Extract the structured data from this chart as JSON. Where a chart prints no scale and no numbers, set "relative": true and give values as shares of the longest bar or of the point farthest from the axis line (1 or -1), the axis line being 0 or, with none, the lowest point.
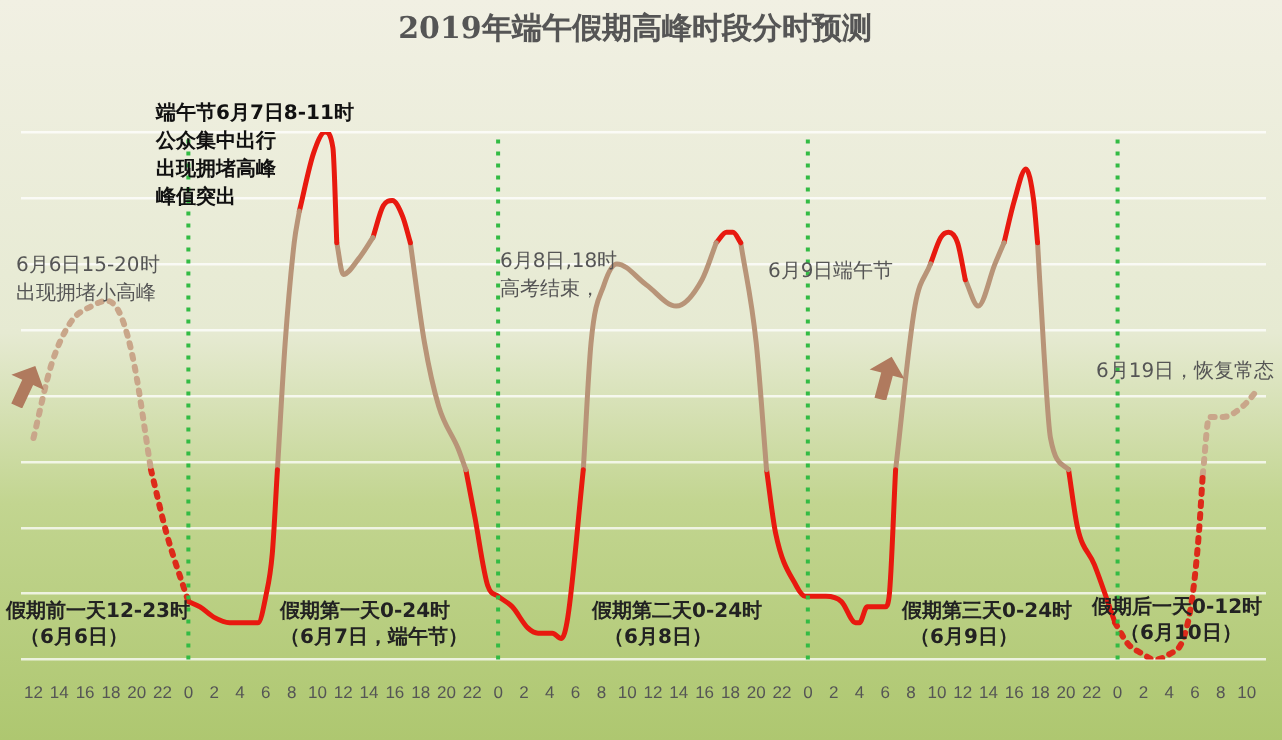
{
  "chart_data": {
    "type": "line",
    "title": "2019年端午假期高峰时段分时预测",
    "relative": true,
    "legend": false,
    "grid": "y",
    "marker": "none",
    "xlim": [
      "2019-06-06T11:00",
      "2019-06-10T11:30"
    ],
    "xticks": [
      {
        "value": "2019-06-06T12:00",
        "label": "12"
      },
      {
        "value": "2019-06-06T14:00",
        "label": "14"
      },
      {
        "value": "2019-06-06T16:00",
        "label": "16"
      },
      {
        "value": "2019-06-06T18:00",
        "label": "18"
      },
      {
        "value": "2019-06-06T20:00",
        "label": "20"
      },
      {
        "value": "2019-06-06T22:00",
        "label": "22"
      },
      {
        "value": "2019-06-07T00:00",
        "label": "0"
      },
      {
        "value": "2019-06-07T02:00",
        "label": "2"
      },
      {
        "value": "2019-06-07T04:00",
        "label": "4"
      },
      {
        "value": "2019-06-07T06:00",
        "label": "6"
      },
      {
        "value": "2019-06-07T08:00",
        "label": "8"
      },
      {
        "value": "2019-06-07T10:00",
        "label": "10"
      },
      {
        "value": "2019-06-07T12:00",
        "label": "12"
      },
      {
        "value": "2019-06-07T14:00",
        "label": "14"
      },
      {
        "value": "2019-06-07T16:00",
        "label": "16"
      },
      {
        "value": "2019-06-07T18:00",
        "label": "18"
      },
      {
        "value": "2019-06-07T20:00",
        "label": "20"
      },
      {
        "value": "2019-06-07T22:00",
        "label": "22"
      },
      {
        "value": "2019-06-08T00:00",
        "label": "0"
      },
      {
        "value": "2019-06-08T02:00",
        "label": "2"
      },
      {
        "value": "2019-06-08T04:00",
        "label": "4"
      },
      {
        "value": "2019-06-08T06:00",
        "label": "6"
      },
      {
        "value": "2019-06-08T08:00",
        "label": "8"
      },
      {
        "value": "2019-06-08T10:00",
        "label": "10"
      },
      {
        "value": "2019-06-08T12:00",
        "label": "12"
      },
      {
        "value": "2019-06-08T14:00",
        "label": "14"
      },
      {
        "value": "2019-06-08T16:00",
        "label": "16"
      },
      {
        "value": "2019-06-08T18:00",
        "label": "18"
      },
      {
        "value": "2019-06-08T20:00",
        "label": "20"
      },
      {
        "value": "2019-06-08T22:00",
        "label": "22"
      },
      {
        "value": "2019-06-09T00:00",
        "label": "0"
      },
      {
        "value": "2019-06-09T02:00",
        "label": "2"
      },
      {
        "value": "2019-06-09T04:00",
        "label": "4"
      },
      {
        "value": "2019-06-09T06:00",
        "label": "6"
      },
      {
        "value": "2019-06-09T08:00",
        "label": "8"
      },
      {
        "value": "2019-06-09T10:00",
        "label": "10"
      },
      {
        "value": "2019-06-09T12:00",
        "label": "12"
      },
      {
        "value": "2019-06-09T14:00",
        "label": "14"
      },
      {
        "value": "2019-06-09T16:00",
        "label": "16"
      },
      {
        "value": "2019-06-09T18:00",
        "label": "18"
      },
      {
        "value": "2019-06-09T20:00",
        "label": "20"
      },
      {
        "value": "2019-06-09T22:00",
        "label": "22"
      },
      {
        "value": "2019-06-10T00:00",
        "label": "0"
      },
      {
        "value": "2019-06-10T02:00",
        "label": "2"
      },
      {
        "value": "2019-06-10T04:00",
        "label": "4"
      },
      {
        "value": "2019-06-10T06:00",
        "label": "6"
      },
      {
        "value": "2019-06-10T08:00",
        "label": "8"
      },
      {
        "value": "2019-06-10T10:00",
        "label": "10"
      }
    ],
    "series": [
      {
        "color": "#c9a68a",
        "line_style": "dotted",
        "x": [
          "2019-06-06T12:00",
          "2019-06-06T13:24",
          "2019-06-06T14:54",
          "2019-06-06T16:30",
          "2019-06-06T17:42",
          "2019-06-06T18:48",
          "2019-06-06T19:48",
          "2019-06-06T21:06"
        ],
        "values": [
          0.42,
          0.56,
          0.64,
          0.67,
          0.68,
          0.65,
          0.56,
          0.36
        ]
      },
      {
        "color": "#dd2a1a",
        "line_style": "dotted",
        "x": [
          "2019-06-06T21:06",
          "2019-06-06T22:18",
          "2019-06-07T00:00"
        ],
        "values": [
          0.36,
          0.24,
          0.11
        ]
      },
      {
        "color": "#e8190f",
        "line_style": "solid",
        "x": [
          "2019-06-07T00:00",
          "2019-06-07T00:54",
          "2019-06-07T02:00",
          "2019-06-07T03:12",
          "2019-06-07T04:48",
          "2019-06-07T05:24",
          "2019-06-07T06:00",
          "2019-06-07T06:30",
          "2019-06-07T06:54"
        ],
        "values": [
          0.11,
          0.1,
          0.08,
          0.07,
          0.07,
          0.07,
          0.12,
          0.2,
          0.36
        ]
      },
      {
        "color": "#b89478",
        "line_style": "solid",
        "x": [
          "2019-06-07T06:54",
          "2019-06-07T07:30",
          "2019-06-07T08:12",
          "2019-06-07T08:36"
        ],
        "values": [
          0.36,
          0.6,
          0.79,
          0.85
        ]
      },
      {
        "color": "#e8190f",
        "line_style": "solid",
        "x": [
          "2019-06-07T08:36",
          "2019-06-07T09:42",
          "2019-06-07T10:36",
          "2019-06-07T11:12",
          "2019-06-07T11:30"
        ],
        "values": [
          0.85,
          0.96,
          1,
          0.97,
          0.79
        ]
      },
      {
        "color": "#b89478",
        "line_style": "solid",
        "x": [
          "2019-06-07T11:30",
          "2019-06-07T12:00",
          "2019-06-07T13:12",
          "2019-06-07T14:18"
        ],
        "values": [
          0.79,
          0.73,
          0.76,
          0.8
        ]
      },
      {
        "color": "#e8190f",
        "line_style": "solid",
        "x": [
          "2019-06-07T14:18",
          "2019-06-07T15:06",
          "2019-06-07T15:48",
          "2019-06-07T16:36",
          "2019-06-07T17:12"
        ],
        "values": [
          0.8,
          0.86,
          0.87,
          0.84,
          0.79
        ]
      },
      {
        "color": "#b89478",
        "line_style": "solid",
        "x": [
          "2019-06-07T17:12",
          "2019-06-07T18:18",
          "2019-06-07T19:24",
          "2019-06-07T20:54",
          "2019-06-07T21:30"
        ],
        "values": [
          0.79,
          0.6,
          0.48,
          0.4,
          0.36
        ]
      },
      {
        "color": "#e8190f",
        "line_style": "solid",
        "x": [
          "2019-06-07T21:30",
          "2019-06-07T22:12",
          "2019-06-07T23:12",
          "2019-06-08T00:00",
          "2019-06-08T01:06",
          "2019-06-08T02:18",
          "2019-06-08T03:06",
          "2019-06-08T04:12",
          "2019-06-08T04:54",
          "2019-06-08T05:24",
          "2019-06-08T06:36"
        ],
        "values": [
          0.36,
          0.27,
          0.14,
          0.12,
          0.1,
          0.06,
          0.05,
          0.05,
          0.04,
          0.08,
          0.36
        ]
      },
      {
        "color": "#b89478",
        "line_style": "solid",
        "x": [
          "2019-06-08T06:36",
          "2019-06-08T07:12",
          "2019-06-08T08:12",
          "2019-06-08T09:12",
          "2019-06-08T11:30",
          "2019-06-08T13:48",
          "2019-06-08T15:48",
          "2019-06-08T16:54"
        ],
        "values": [
          0.36,
          0.6,
          0.71,
          0.75,
          0.71,
          0.67,
          0.72,
          0.79
        ]
      },
      {
        "color": "#e8190f",
        "line_style": "solid",
        "x": [
          "2019-06-08T16:54",
          "2019-06-08T17:42",
          "2019-06-08T18:12",
          "2019-06-08T18:48"
        ],
        "values": [
          0.79,
          0.81,
          0.81,
          0.79
        ]
      },
      {
        "color": "#b89478",
        "line_style": "solid",
        "x": [
          "2019-06-08T18:48",
          "2019-06-08T20:00",
          "2019-06-08T20:48"
        ],
        "values": [
          0.79,
          0.6,
          0.36
        ]
      },
      {
        "color": "#e8190f",
        "line_style": "solid",
        "x": [
          "2019-06-08T20:48",
          "2019-06-08T21:30",
          "2019-06-08T23:06",
          "2019-06-08T23:48",
          "2019-06-09T01:24",
          "2019-06-09T02:36",
          "2019-06-09T03:42",
          "2019-06-09T04:00",
          "2019-06-09T04:36",
          "2019-06-09T06:00",
          "2019-06-09T06:18",
          "2019-06-09T06:48"
        ],
        "values": [
          0.36,
          0.24,
          0.14,
          0.12,
          0.12,
          0.11,
          0.07,
          0.07,
          0.1,
          0.1,
          0.12,
          0.36
        ]
      },
      {
        "color": "#b89478",
        "line_style": "solid",
        "x": [
          "2019-06-09T06:48",
          "2019-06-09T08:18",
          "2019-06-09T09:30"
        ],
        "values": [
          0.36,
          0.67,
          0.75
        ]
      },
      {
        "color": "#e8190f",
        "line_style": "solid",
        "x": [
          "2019-06-09T09:30",
          "2019-06-09T10:18",
          "2019-06-09T10:54",
          "2019-06-09T11:36",
          "2019-06-09T12:12"
        ],
        "values": [
          0.75,
          0.8,
          0.81,
          0.79,
          0.72
        ]
      },
      {
        "color": "#b89478",
        "line_style": "solid",
        "x": [
          "2019-06-09T12:12",
          "2019-06-09T13:12",
          "2019-06-09T14:30",
          "2019-06-09T15:12"
        ],
        "values": [
          0.72,
          0.67,
          0.75,
          0.79
        ]
      },
      {
        "color": "#e8190f",
        "line_style": "solid",
        "x": [
          "2019-06-09T15:12",
          "2019-06-09T16:00",
          "2019-06-09T16:54",
          "2019-06-09T17:30",
          "2019-06-09T17:48"
        ],
        "values": [
          0.79,
          0.87,
          0.93,
          0.87,
          0.79
        ]
      },
      {
        "color": "#b89478",
        "line_style": "solid",
        "x": [
          "2019-06-09T17:48",
          "2019-06-09T18:18",
          "2019-06-09T18:48",
          "2019-06-09T20:12"
        ],
        "values": [
          0.79,
          0.58,
          0.42,
          0.36
        ]
      },
      {
        "color": "#e8190f",
        "line_style": "solid",
        "x": [
          "2019-06-09T20:12",
          "2019-06-09T20:54",
          "2019-06-09T22:12",
          "2019-06-09T23:48"
        ],
        "values": [
          0.36,
          0.25,
          0.18,
          0.07
        ]
      },
      {
        "color": "#dd2a1a",
        "line_style": "dotted",
        "x": [
          "2019-06-09T23:48",
          "2019-06-10T00:48",
          "2019-06-10T02:00",
          "2019-06-10T02:48",
          "2019-06-10T04:00",
          "2019-06-10T05:06",
          "2019-06-10T05:48",
          "2019-06-10T06:18",
          "2019-06-10T06:36"
        ],
        "values": [
          0.07,
          0.03,
          0.01,
          0,
          0.01,
          0.04,
          0.12,
          0.24,
          0.35
        ]
      },
      {
        "color": "#c9a68a",
        "line_style": "dotted",
        "x": [
          "2019-06-10T06:36",
          "2019-06-10T07:06",
          "2019-06-10T08:12",
          "2019-06-10T09:42",
          "2019-06-10T10:48"
        ],
        "values": [
          0.35,
          0.46,
          0.46,
          0.48,
          0.51
        ]
      }
    ],
    "ref_lines": [
      {
        "axis": "x",
        "value": "2019-06-07T00:00",
        "color": "#33bb44",
        "line_style": "dotted"
      },
      {
        "axis": "x",
        "value": "2019-06-08T00:00",
        "color": "#33bb44",
        "line_style": "dotted"
      },
      {
        "axis": "x",
        "value": "2019-06-09T00:00",
        "color": "#33bb44",
        "line_style": "dotted"
      },
      {
        "axis": "x",
        "value": "2019-06-10T00:00",
        "color": "#33bb44",
        "line_style": "dotted"
      }
    ],
    "annotations": [
      "端午节6月7日8-11时",
      "公众集中出行",
      "出现拥堵高峰",
      "峰值突出",
      "6月6日15-20时",
      "出现拥堵小高峰",
      "6月8日,18时",
      "高考结束，",
      "6月9日端午节",
      "6月19日，恢复常态",
      "假期前一天12-23时",
      "（6月6日）",
      "假期第一天0-24时",
      "（6月7日，端午节）",
      "假期第二天0-24时",
      "（6月8日）",
      "假期第三天0-24时",
      "（6月9日）",
      "假期后一天0-12时",
      "（6月10日）"
    ]
  }
}
